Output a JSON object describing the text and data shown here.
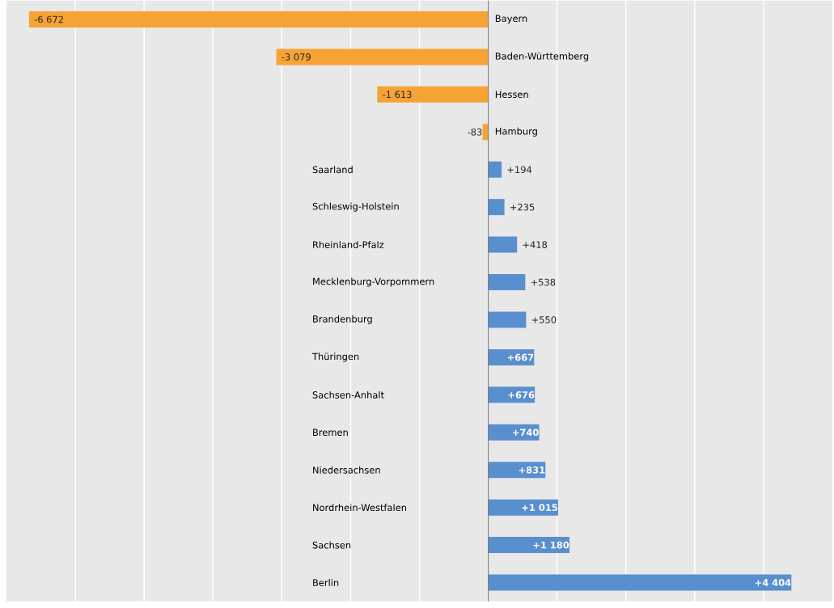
{
  "chart_data": {
    "type": "bar",
    "orientation": "horizontal",
    "categories": [
      "Bayern",
      "Baden-Württemberg",
      "Hessen",
      "Hamburg",
      "Saarland",
      "Schleswig-Holstein",
      "Rheinland-Pfalz",
      "Mecklenburg-Vorpommern",
      "Brandenburg",
      "Thüringen",
      "Sachsen-Anhalt",
      "Bremen",
      "Niedersachsen",
      "Nordrhein-Westfalen",
      "Sachsen",
      "Berlin"
    ],
    "values": [
      -6672,
      -3079,
      -1613,
      -83,
      194,
      235,
      418,
      538,
      550,
      667,
      676,
      740,
      831,
      1015,
      1180,
      4404
    ],
    "value_labels": [
      "-6 672",
      "-3 079",
      "-1 613",
      "-83",
      "+194",
      "+235",
      "+418",
      "+538",
      "+550",
      "+667",
      "+676",
      "+740",
      "+831",
      "+1 015",
      "+1 180",
      "+4 404"
    ],
    "colors": [
      "#f7a234",
      "#f7a234",
      "#f7a234",
      "#f7a234",
      "#5a8fcf",
      "#5a8fcf",
      "#5a8fcf",
      "#5a8fcf",
      "#5a8fcf",
      "#5a8fcf",
      "#5a8fcf",
      "#5a8fcf",
      "#5a8fcf",
      "#5a8fcf",
      "#5a8fcf",
      "#5a8fcf"
    ],
    "xlim": [
      -7000,
      5000
    ],
    "xticks": [
      {
        "value": -6000,
        "label": null
      },
      {
        "value": -5000,
        "label": null
      },
      {
        "value": -4000,
        "label": null
      },
      {
        "value": -3000,
        "label": null
      },
      {
        "value": -2000,
        "label": null
      },
      {
        "value": -1000,
        "label": null
      },
      {
        "value": 0,
        "label": null
      },
      {
        "value": 1000,
        "label": null
      },
      {
        "value": 2000,
        "label": null
      },
      {
        "value": 3000,
        "label": null
      },
      {
        "value": 4000,
        "label": null
      }
    ],
    "grid": "x"
  }
}
